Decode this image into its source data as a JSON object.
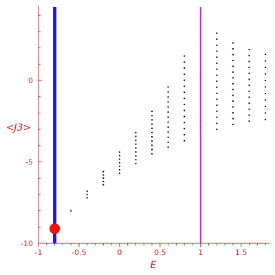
{
  "chart_data": {
    "type": "scatter",
    "title": "",
    "xlabel": "E",
    "ylabel": "<J3>",
    "xlim": [
      -1.0,
      1.85
    ],
    "ylim": [
      -10.0,
      4.6
    ],
    "grid": false,
    "x_ticks": [
      {
        "value": -1,
        "label": "-1"
      },
      {
        "value": -0.5,
        "label": "-0.5"
      },
      {
        "value": 0,
        "label": "0"
      },
      {
        "value": 0.5,
        "label": "0.5"
      },
      {
        "value": 1,
        "label": "1"
      },
      {
        "value": 1.5,
        "label": "1.5"
      }
    ],
    "y_ticks": [
      {
        "value": -10,
        "label": "-10"
      },
      {
        "value": -5,
        "label": "-5"
      },
      {
        "value": 0,
        "label": "0"
      }
    ],
    "vertical_lines": [
      {
        "x": -0.8,
        "color": "#1a1acc"
      },
      {
        "x": 1.0,
        "color": "#dd11dd"
      }
    ],
    "marker_circle": {
      "x": -0.8,
      "y": -9.1,
      "radius_x": 0.065,
      "color": "#ee1111"
    },
    "point_color": "#000000",
    "columns": [
      {
        "x": -0.6,
        "ymin": -8.0,
        "ymax": -8.0,
        "n": 1
      },
      {
        "x": -0.4,
        "ymin": -7.2,
        "ymax": -6.8,
        "n": 3
      },
      {
        "x": -0.2,
        "ymin": -6.4,
        "ymax": -5.6,
        "n": 5
      },
      {
        "x": 0.0,
        "ymin": -5.7,
        "ymax": -4.4,
        "n": 7
      },
      {
        "x": 0.2,
        "ymin": -5.1,
        "ymax": -3.2,
        "n": 9
      },
      {
        "x": 0.4,
        "ymin": -4.5,
        "ymax": -1.9,
        "n": 11
      },
      {
        "x": 0.6,
        "ymin": -4.1,
        "ymax": -0.4,
        "n": 13
      },
      {
        "x": 0.8,
        "ymin": -3.7,
        "ymax": 1.5,
        "n": 15
      },
      {
        "x": 1.0,
        "ymin": -3.3,
        "ymax": 3.5,
        "n": 17
      },
      {
        "x": 1.2,
        "ymin": -3.0,
        "ymax": 2.9,
        "n": 17
      },
      {
        "x": 1.4,
        "ymin": -2.7,
        "ymax": 2.3,
        "n": 15
      },
      {
        "x": 1.6,
        "ymin": -2.5,
        "ymax": 1.9,
        "n": 13
      },
      {
        "x": 1.8,
        "ymin": -2.4,
        "ymax": 1.6,
        "n": 11
      }
    ]
  }
}
